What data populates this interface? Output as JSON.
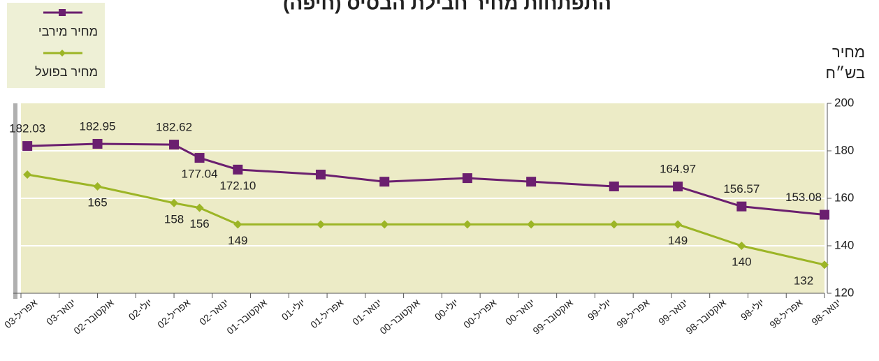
{
  "chart_data": {
    "type": "line",
    "title": "התפתחות מחיר חבילת הבסיס (חיפה)",
    "y_label": [
      "מחיר",
      "בש״ח"
    ],
    "x": [
      62.5,
      57,
      51,
      49,
      46,
      39.5,
      34.5,
      28,
      23,
      16.5,
      11.5,
      6.5,
      0
    ],
    "xlim": [
      63,
      0
    ],
    "xticks": [
      {
        "value": 63,
        "label": "אפריל-03"
      },
      {
        "value": 60,
        "label": "ינואר-03"
      },
      {
        "value": 57,
        "label": "אוקטובר-02"
      },
      {
        "value": 54,
        "label": "יולי-02"
      },
      {
        "value": 51,
        "label": "אפריל-02"
      },
      {
        "value": 48,
        "label": "ינואר-02"
      },
      {
        "value": 45,
        "label": "אוקטובר-01"
      },
      {
        "value": 42,
        "label": "יולי-01"
      },
      {
        "value": 39,
        "label": "אפריל-01"
      },
      {
        "value": 36,
        "label": "ינואר-01"
      },
      {
        "value": 33,
        "label": "אוקטובר-00"
      },
      {
        "value": 30,
        "label": "יולי-00"
      },
      {
        "value": 27,
        "label": "אפריל-00"
      },
      {
        "value": 24,
        "label": "ינואר-00"
      },
      {
        "value": 21,
        "label": "אוקטובר-99"
      },
      {
        "value": 18,
        "label": "יולי-99"
      },
      {
        "value": 15,
        "label": "אפריל-99"
      },
      {
        "value": 12,
        "label": "ינואר-99"
      },
      {
        "value": 9,
        "label": "אוקטובר-98"
      },
      {
        "value": 6,
        "label": "יולי-98"
      },
      {
        "value": 3,
        "label": "אפריל-98"
      },
      {
        "value": 0,
        "label": "ינואר-98"
      }
    ],
    "ylim": [
      120,
      200
    ],
    "yticks": [
      120,
      140,
      160,
      180,
      200
    ],
    "grid": true,
    "legend": "upper left",
    "series": [
      {
        "name": "מחיר מירבי",
        "color": "#6b1f6f",
        "marker": "square",
        "values": [
          182.03,
          182.95,
          182.62,
          177.04,
          172.1,
          170,
          167,
          168.5,
          167,
          165,
          164.97,
          156.57,
          153.08
        ],
        "value_labels": [
          "182.03",
          "182.95",
          "182.62",
          "177.04",
          "172.10",
          null,
          null,
          null,
          null,
          null,
          "164.97",
          "156.57",
          "153.08"
        ]
      },
      {
        "name": "מחיר בפועל",
        "color": "#9cb526",
        "marker": "diamond",
        "values": [
          170,
          165,
          158,
          156,
          149,
          149,
          149,
          149,
          149,
          149,
          149,
          140,
          132
        ],
        "value_labels": [
          null,
          "165",
          "158",
          "156",
          "149",
          null,
          null,
          null,
          null,
          null,
          "149",
          "140",
          "132"
        ]
      }
    ]
  }
}
